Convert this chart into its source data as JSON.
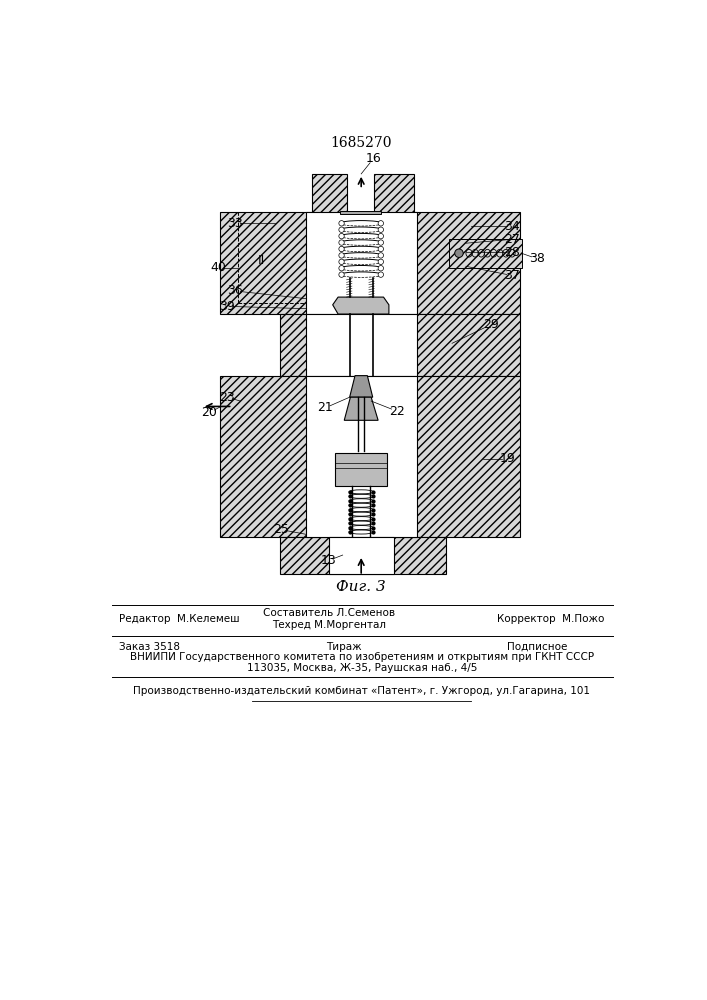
{
  "title": "1685270",
  "fig_label": "Фиг. 3",
  "bg_color": "#ffffff",
  "line_color": "#000000",
  "footer_editor": "Редактор  М.Келемеш",
  "footer_comp1": "Составитель Л.Семенов",
  "footer_comp2": "Техред М.Моргентал",
  "footer_corr": "Корректор  М.Пожо",
  "footer_order": "Заказ 3518",
  "footer_tirazh": "Тираж",
  "footer_podp": "Подписное",
  "footer_vniip": "ВНИИПИ Государственного комитета по изобретениям и открытиям при ГКНТ СССР",
  "footer_addr": "113035, Москва, Ж-35, Раушская наб., 4/5",
  "footer_last": "Производственно-издательский комбинат «Патент», г. Ужгород, ул.Гагарина, 101"
}
